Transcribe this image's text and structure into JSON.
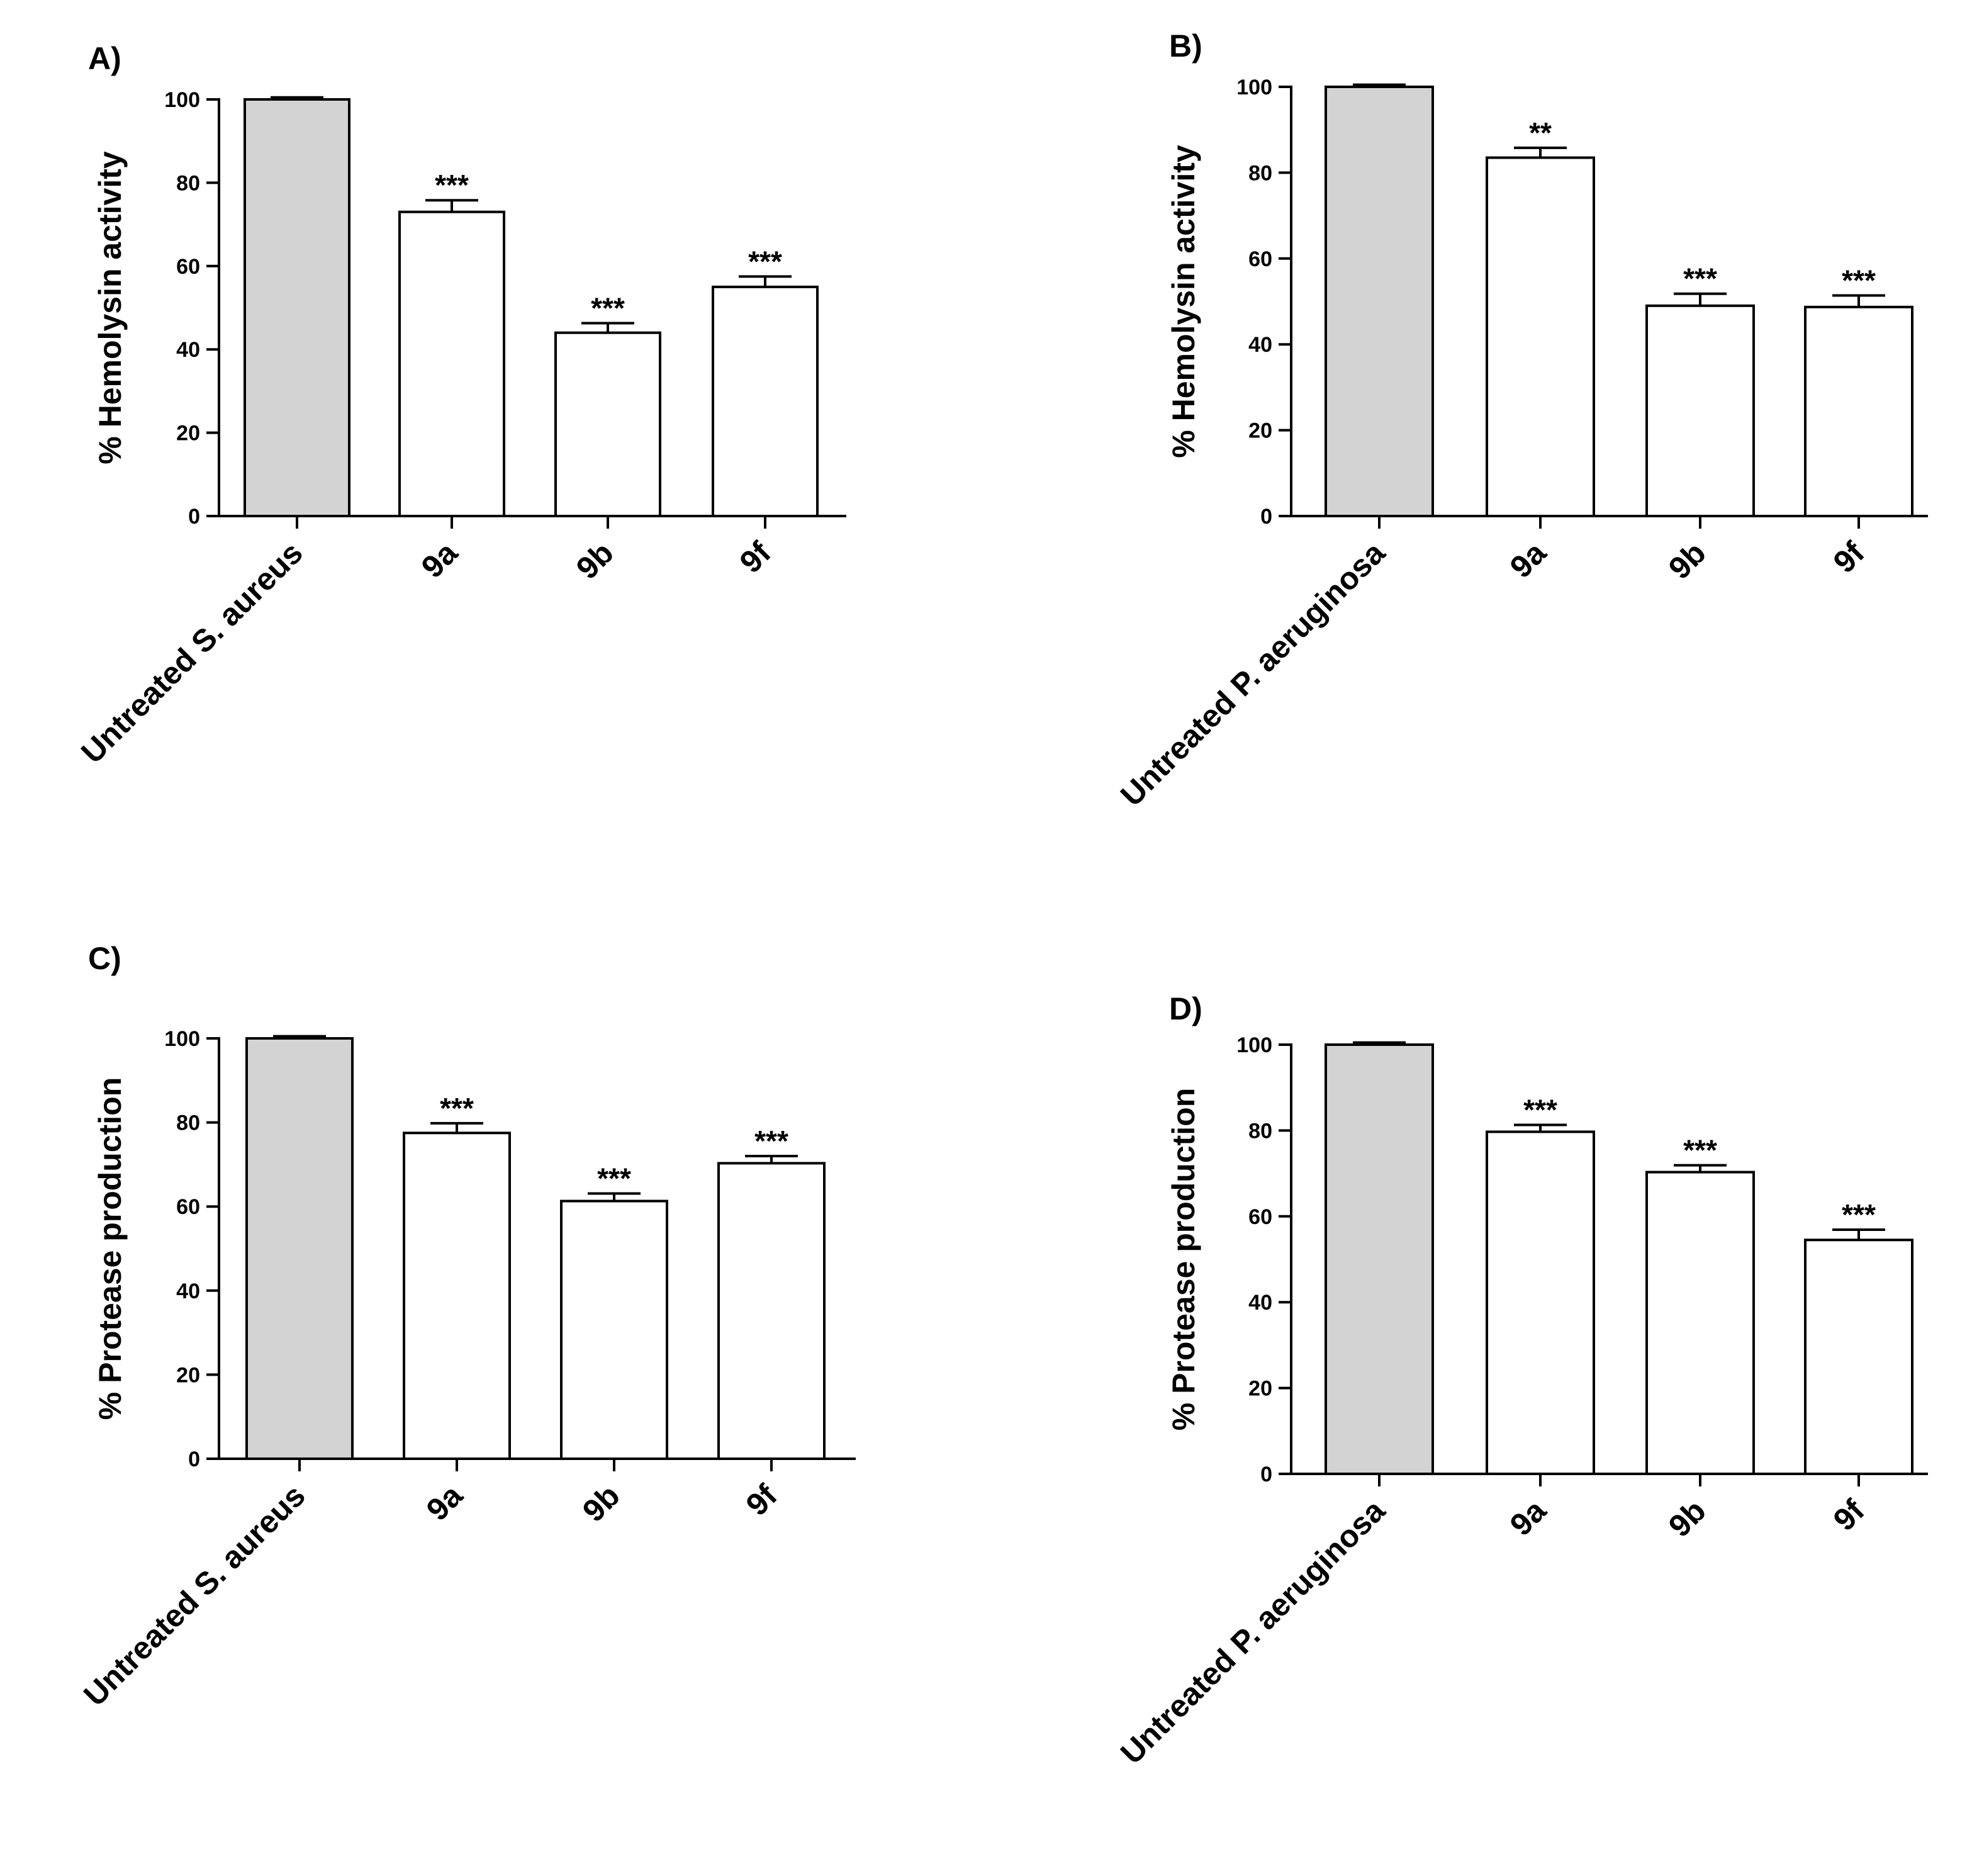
{
  "chart_data": [
    {
      "type": "bar",
      "panel": "A)",
      "categories": [
        "Untreated S. aureus",
        "9a",
        "9b",
        "9f"
      ],
      "values": [
        100,
        73,
        44,
        55
      ],
      "errors": [
        0.5,
        2.8,
        2.3,
        2.5
      ],
      "significance": [
        "",
        "***",
        "***",
        "***"
      ],
      "bar_colors": [
        "#d3d3d3",
        "#ffffff",
        "#ffffff",
        "#ffffff"
      ],
      "ylabel": "% Hemolysin activity",
      "ylim": [
        0,
        100
      ],
      "yticks": [
        0,
        20,
        40,
        60,
        80,
        100
      ],
      "grid": false,
      "legend": "none"
    },
    {
      "type": "bar",
      "panel": "B)",
      "categories": [
        "Untreated P. aeruginosa",
        "9a",
        "9b",
        "9f"
      ],
      "values": [
        100,
        83.5,
        49,
        48.7
      ],
      "errors": [
        0.5,
        2.3,
        2.8,
        2.7
      ],
      "significance": [
        "",
        "**",
        "***",
        "***"
      ],
      "bar_colors": [
        "#d3d3d3",
        "#ffffff",
        "#ffffff",
        "#ffffff"
      ],
      "ylabel": "% Hemolysin activity",
      "ylim": [
        0,
        100
      ],
      "yticks": [
        0,
        20,
        40,
        60,
        80,
        100
      ],
      "grid": false,
      "legend": "none"
    },
    {
      "type": "bar",
      "panel": "C)",
      "categories": [
        "Untreated S. aureus",
        "9a",
        "9b",
        "9f"
      ],
      "values": [
        100,
        77.5,
        61.3,
        70.3
      ],
      "errors": [
        0.5,
        2.3,
        1.8,
        1.7
      ],
      "significance": [
        "",
        "***",
        "***",
        "***"
      ],
      "bar_colors": [
        "#d3d3d3",
        "#ffffff",
        "#ffffff",
        "#ffffff"
      ],
      "ylabel": "% Protease production",
      "ylim": [
        0,
        100
      ],
      "yticks": [
        0,
        20,
        40,
        60,
        80,
        100
      ],
      "grid": false,
      "legend": "none"
    },
    {
      "type": "bar",
      "panel": "D)",
      "categories": [
        "Untreated P. aeruginosa",
        "9a",
        "9b",
        "9f"
      ],
      "values": [
        100,
        79.7,
        70.3,
        54.5
      ],
      "errors": [
        0.5,
        1.6,
        1.6,
        2.4
      ],
      "significance": [
        "",
        "***",
        "***",
        "***"
      ],
      "bar_colors": [
        "#d3d3d3",
        "#ffffff",
        "#ffffff",
        "#ffffff"
      ],
      "ylabel": "% Protease production",
      "ylim": [
        0,
        100
      ],
      "yticks": [
        0,
        20,
        40,
        60,
        80,
        100
      ],
      "grid": false,
      "legend": "none"
    }
  ]
}
